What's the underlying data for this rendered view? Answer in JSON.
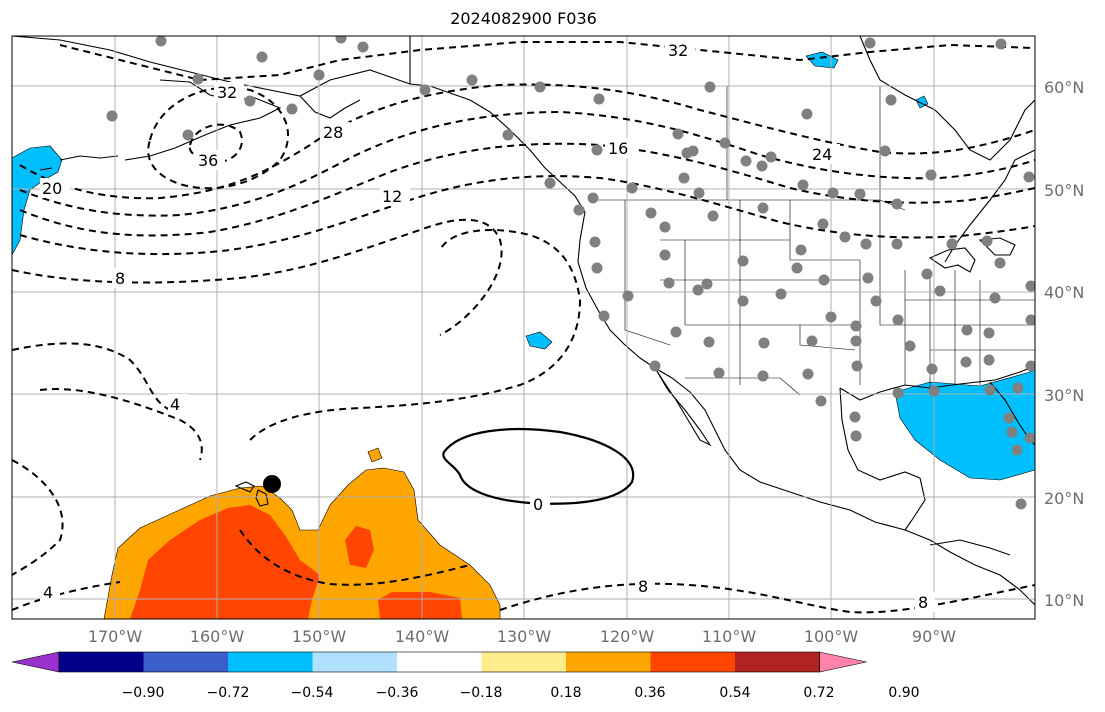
{
  "title": "2024082900 F036",
  "lat_labels": [
    "60°N",
    "50°N",
    "40°N",
    "30°N",
    "20°N",
    "10°N"
  ],
  "lon_labels": [
    "170°W",
    "160°W",
    "150°W",
    "140°W",
    "130°W",
    "120°W",
    "110°W",
    "100°W",
    "90°W"
  ],
  "contour_labels": [
    "32",
    "32",
    "36",
    "28",
    "16",
    "24",
    "20",
    "12",
    "8",
    "4",
    "0",
    "8",
    "8",
    "4"
  ],
  "colorbar": {
    "ticks": [
      "−0.90",
      "−0.72",
      "−0.54",
      "−0.36",
      "−0.18",
      "0.18",
      "0.36",
      "0.54",
      "0.72",
      "0.90"
    ],
    "colors": [
      "#9932cc",
      "#00008b",
      "#3a5fcd",
      "#00bfff",
      "#b0e2ff",
      "#ffffff",
      "#ffec8b",
      "#ffa500",
      "#ff4500",
      "#b22222",
      "#ff82ab"
    ]
  },
  "colors": {
    "positive_orange": "#ffa500",
    "positive_red": "#ff4500",
    "negative_blue": "#00bfff",
    "station_gray": "#808080",
    "grid": "#b0b0b0"
  }
}
